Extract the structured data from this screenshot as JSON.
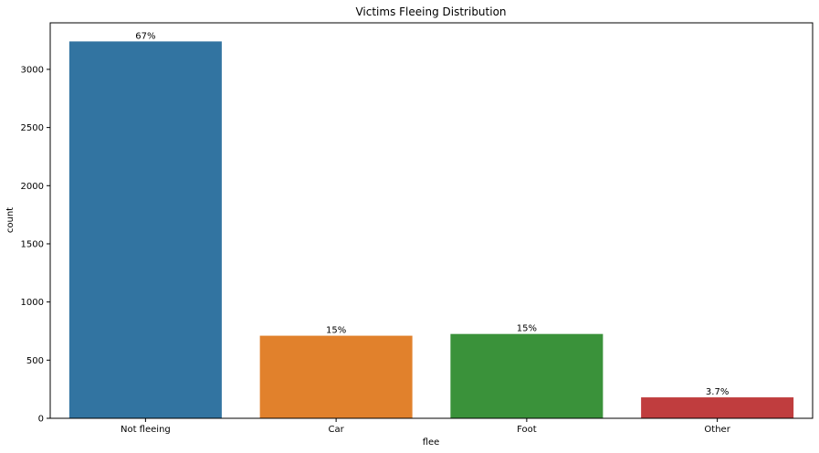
{
  "chart_data": {
    "type": "bar",
    "title": "Victims Fleeing Distribution",
    "xlabel": "flee",
    "ylabel": "count",
    "categories": [
      "Not fleeing",
      "Car",
      "Foot",
      "Other"
    ],
    "values": [
      3240,
      710,
      725,
      180
    ],
    "data_labels": [
      "67%",
      "15%",
      "15%",
      "3.7%"
    ],
    "colors": [
      "#3274a1",
      "#e1812c",
      "#3a923a",
      "#c03d3e"
    ],
    "ylim": [
      0,
      3400
    ],
    "yticks": [
      0,
      500,
      1000,
      1500,
      2000,
      2500,
      3000
    ],
    "grid": false,
    "legend": "none"
  }
}
